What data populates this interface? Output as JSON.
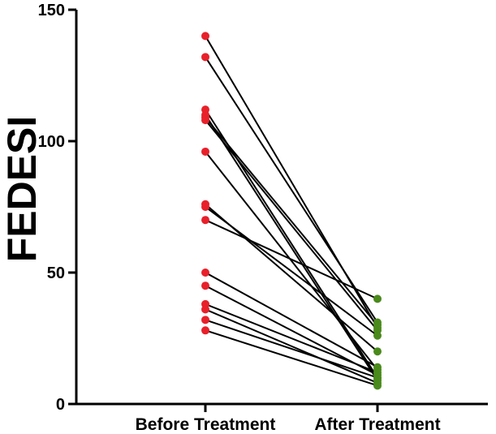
{
  "chart_data": {
    "type": "line",
    "title": "",
    "xlabel": "",
    "ylabel": "FEDESI",
    "categories": [
      "Before Treatment",
      "After Treatment"
    ],
    "ylim": [
      0,
      150
    ],
    "yticks": [
      0,
      50,
      100,
      150
    ],
    "colors": {
      "before": "#e8202a",
      "after": "#4a8a1c",
      "line": "#000000"
    },
    "pairs": [
      {
        "before": 140,
        "after": 29
      },
      {
        "before": 132,
        "after": 31
      },
      {
        "before": 112,
        "after": 10
      },
      {
        "before": 110,
        "after": 9
      },
      {
        "before": 109,
        "after": 30
      },
      {
        "before": 108,
        "after": 28
      },
      {
        "before": 96,
        "after": 13
      },
      {
        "before": 76,
        "after": 20
      },
      {
        "before": 75,
        "after": 26
      },
      {
        "before": 70,
        "after": 40
      },
      {
        "before": 50,
        "after": 14
      },
      {
        "before": 45,
        "after": 11
      },
      {
        "before": 38,
        "after": 12
      },
      {
        "before": 36,
        "after": 8
      },
      {
        "before": 32,
        "after": 10
      },
      {
        "before": 28,
        "after": 7
      }
    ]
  }
}
